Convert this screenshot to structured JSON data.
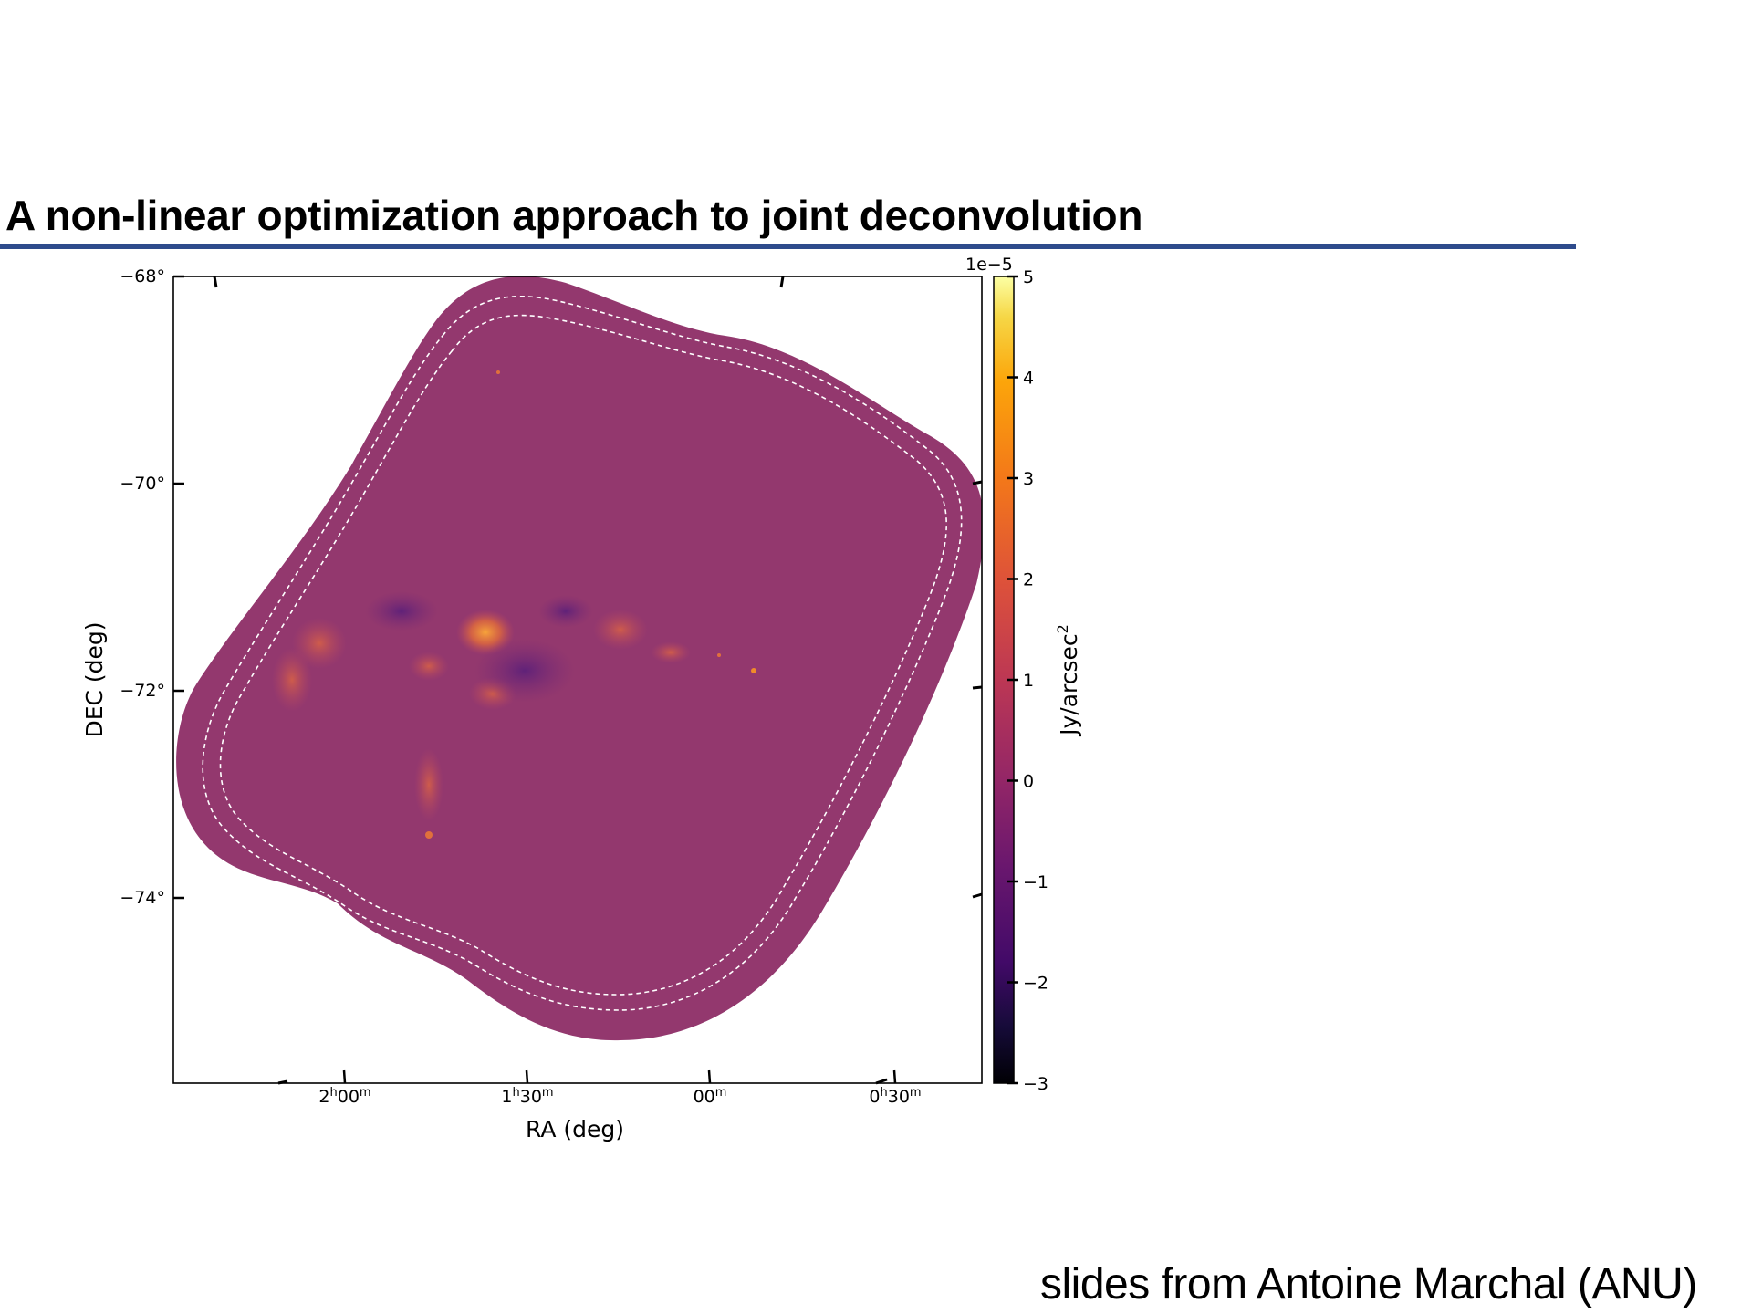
{
  "slide": {
    "title": "A non-linear optimization approach to joint deconvolution",
    "credit": "slides from Antoine Marchal (ANU)"
  },
  "figure": {
    "xlabel": "RA (deg)",
    "ylabel": "DEC (deg)",
    "dec_ticks": [
      {
        "label": "−68°",
        "value": -68
      },
      {
        "label": "−70°",
        "value": -70
      },
      {
        "label": "−72°",
        "value": -72
      },
      {
        "label": "−74°",
        "value": -74
      }
    ],
    "ra_ticks": [
      {
        "h": "2",
        "hunit": "h",
        "m": "00",
        "munit": "m"
      },
      {
        "h": "1",
        "hunit": "h",
        "m": "30",
        "munit": "m"
      },
      {
        "h": "",
        "hunit": "",
        "m": "00",
        "munit": "m"
      },
      {
        "h": "0",
        "hunit": "h",
        "m": "30",
        "munit": "m"
      }
    ],
    "colorbar": {
      "label": "Jy/arcsec",
      "label_exponent": "2",
      "offset_text": "1e−5",
      "ticks": [
        {
          "label": "5",
          "value": 5
        },
        {
          "label": "4",
          "value": 4
        },
        {
          "label": "3",
          "value": 3
        },
        {
          "label": "2",
          "value": 2
        },
        {
          "label": "1",
          "value": 1
        },
        {
          "label": "0",
          "value": 0
        },
        {
          "label": "−1",
          "value": -1
        },
        {
          "label": "−2",
          "value": -2
        },
        {
          "label": "−3",
          "value": -3
        }
      ],
      "range": [
        -3,
        5
      ],
      "colormap": "inferno"
    },
    "colors": {
      "map_fill": "#93386e",
      "rule": "#2e4b8c",
      "contour": "#ffffff"
    }
  }
}
